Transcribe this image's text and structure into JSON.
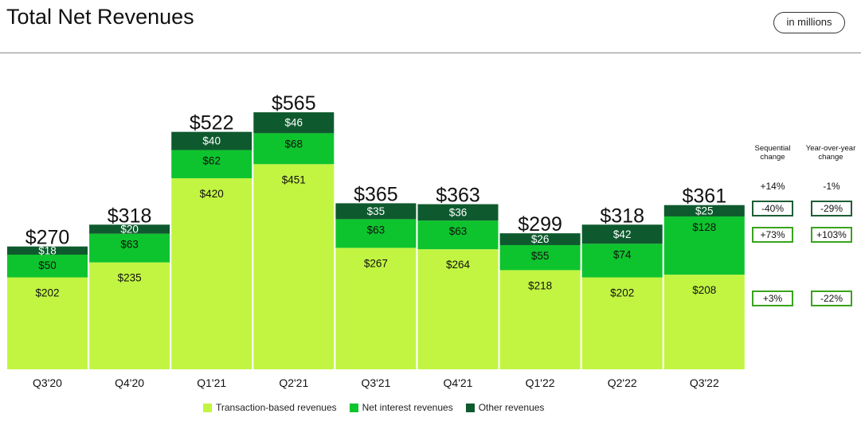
{
  "header": {
    "title": "Total Net Revenues",
    "unit_badge": "in millions"
  },
  "colors": {
    "transaction": "#c2f542",
    "net_interest": "#0ec42e",
    "other": "#0e5a2e"
  },
  "chart_data": {
    "type": "bar",
    "stacked": true,
    "title": "Total Net Revenues",
    "categories": [
      "Q3'20",
      "Q4'20",
      "Q1'21",
      "Q2'21",
      "Q3'21",
      "Q4'21",
      "Q1'22",
      "Q2'22",
      "Q3'22"
    ],
    "series": [
      {
        "name": "Transaction-based revenues",
        "values": [
          202,
          235,
          420,
          451,
          267,
          264,
          218,
          202,
          208
        ]
      },
      {
        "name": "Net interest revenues",
        "values": [
          50,
          63,
          62,
          68,
          63,
          63,
          55,
          74,
          128
        ]
      },
      {
        "name": "Other revenues",
        "values": [
          18,
          20,
          40,
          46,
          35,
          36,
          26,
          42,
          25
        ]
      }
    ],
    "totals": [
      270,
      318,
      522,
      565,
      365,
      363,
      299,
      318,
      361
    ],
    "total_labels": [
      "$270",
      "$318",
      "$522",
      "$565",
      "$365",
      "$363",
      "$299",
      "$318",
      "$361"
    ],
    "segment_labels": [
      [
        "$202",
        "$235",
        "$420",
        "$451",
        "$267",
        "$264",
        "$218",
        "$202",
        "$208"
      ],
      [
        "$50",
        "$63",
        "$62",
        "$68",
        "$63",
        "$63",
        "$55",
        "$74",
        "$128"
      ],
      [
        "$18",
        "$20",
        "$40",
        "$46",
        "$35",
        "$36",
        "$26",
        "$42",
        "$25"
      ]
    ],
    "ylim": [
      0,
      620
    ],
    "legend": "bottom",
    "grid": false
  },
  "changes": {
    "sequential_header": "Sequential change",
    "yoy_header": "Year-over-year change",
    "total": {
      "sequential": "+14%",
      "yoy": "-1%"
    },
    "other": {
      "sequential": "-40%",
      "yoy": "-29%"
    },
    "net_interest": {
      "sequential": "+73%",
      "yoy": "+103%"
    },
    "transaction": {
      "sequential": "+3%",
      "yoy": "-22%"
    }
  }
}
